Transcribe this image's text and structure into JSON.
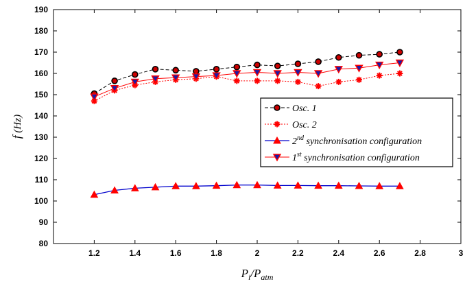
{
  "chart_data": {
    "type": "line",
    "xlabel": "P_i/P_atm",
    "ylabel": "f (Hz)",
    "xlim": [
      1,
      3
    ],
    "ylim": [
      80,
      190
    ],
    "x_ticks": [
      "1.2",
      "1.4",
      "1.6",
      "1.8",
      "2",
      "2.2",
      "2.4",
      "2.6",
      "2.8",
      "3"
    ],
    "y_ticks": [
      "80",
      "90",
      "100",
      "110",
      "120",
      "130",
      "140",
      "150",
      "160",
      "170",
      "180",
      "190"
    ],
    "grid": false,
    "legend_position": "right",
    "x": [
      1.2,
      1.3,
      1.4,
      1.5,
      1.6,
      1.7,
      1.8,
      1.9,
      2.0,
      2.1,
      2.2,
      2.3,
      2.4,
      2.5,
      2.6,
      2.7
    ],
    "series": [
      {
        "name": "Osc. 1",
        "color": "#000000",
        "marker": "circle",
        "values": [
          150.5,
          156.5,
          159.5,
          162,
          161.5,
          161,
          162,
          163,
          164,
          163.5,
          164.5,
          165.5,
          167.5,
          168.5,
          169,
          170
        ]
      },
      {
        "name": "Osc. 2",
        "color": "#ff0000",
        "marker": "star",
        "values": [
          147,
          152,
          154.5,
          156,
          157,
          157.5,
          158.5,
          156.5,
          156.5,
          156.5,
          156,
          154,
          156,
          157,
          159,
          160
        ]
      },
      {
        "name": "2nd synchronisation configuration",
        "color": "#0000cc",
        "marker": "triangle-up",
        "values": [
          103,
          105,
          106,
          106.5,
          107,
          107,
          107.2,
          107.5,
          107.5,
          107.3,
          107.3,
          107.2,
          107.2,
          107.1,
          107,
          107
        ]
      },
      {
        "name": "1st synchronisation configuration",
        "color": "#ff0000",
        "marker": "triangle-down",
        "values": [
          149,
          153,
          156,
          157.5,
          158,
          158.5,
          159,
          160,
          160.5,
          160,
          160.5,
          160,
          162,
          162.5,
          164,
          165
        ]
      }
    ],
    "legend": [
      {
        "base": "Osc. 1",
        "sup": "",
        "rest": ""
      },
      {
        "base": "Osc. 2",
        "sup": "",
        "rest": ""
      },
      {
        "base": "2",
        "sup": "nd",
        "rest": " synchronisation configuration"
      },
      {
        "base": "1",
        "sup": "st",
        "rest": " synchronisation configuration"
      }
    ]
  }
}
